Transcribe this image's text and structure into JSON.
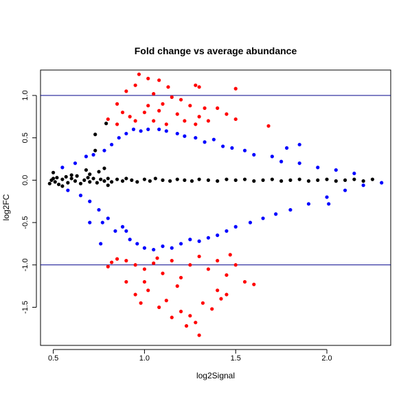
{
  "chart_data": {
    "type": "scatter",
    "title": "Fold change vs average abundance",
    "xlabel": "log2Signal",
    "ylabel": "log2FC",
    "xlim": [
      0.43,
      2.35
    ],
    "ylim": [
      -1.95,
      1.3
    ],
    "x_ticks": [
      0.5,
      1.0,
      1.5,
      2.0
    ],
    "x_tick_labels": [
      "0.5",
      "1.0",
      "1.5",
      "2.0"
    ],
    "y_ticks": [
      -1.5,
      -1.0,
      -0.5,
      0.0,
      0.5,
      1.0
    ],
    "y_tick_labels": [
      "-1.5",
      "-1.0",
      "-0.5",
      "0.0",
      "0.5",
      "1.0"
    ],
    "reference_lines": [
      1.0,
      -1.0
    ],
    "reference_line_color": "#00008B",
    "grid": false,
    "colors": {
      "black": "#000000",
      "blue": "#0000FF",
      "red": "#FF0000"
    },
    "series": [
      {
        "color": "black",
        "points": [
          [
            0.48,
            -0.04
          ],
          [
            0.49,
            0.0
          ],
          [
            0.5,
            0.02
          ],
          [
            0.51,
            -0.02
          ],
          [
            0.52,
            0.03
          ],
          [
            0.53,
            -0.05
          ],
          [
            0.55,
            0.01
          ],
          [
            0.57,
            0.04
          ],
          [
            0.58,
            -0.03
          ],
          [
            0.6,
            0.02
          ],
          [
            0.62,
            -0.01
          ],
          [
            0.63,
            0.05
          ],
          [
            0.65,
            -0.04
          ],
          [
            0.67,
            0.0
          ],
          [
            0.69,
            0.03
          ],
          [
            0.7,
            -0.02
          ],
          [
            0.72,
            0.02
          ],
          [
            0.74,
            -0.03
          ],
          [
            0.76,
            0.01
          ],
          [
            0.78,
            -0.01
          ],
          [
            0.8,
            0.02
          ],
          [
            0.82,
            -0.02
          ],
          [
            0.85,
            0.01
          ],
          [
            0.88,
            -0.01
          ],
          [
            0.9,
            0.02
          ],
          [
            0.93,
            0.0
          ],
          [
            0.96,
            -0.02
          ],
          [
            1.0,
            0.01
          ],
          [
            1.03,
            -0.01
          ],
          [
            1.06,
            0.02
          ],
          [
            1.1,
            0.0
          ],
          [
            1.14,
            -0.01
          ],
          [
            1.18,
            0.01
          ],
          [
            1.22,
            0.0
          ],
          [
            1.26,
            -0.01
          ],
          [
            1.3,
            0.01
          ],
          [
            1.35,
            0.0
          ],
          [
            1.4,
            -0.01
          ],
          [
            1.45,
            0.01
          ],
          [
            1.5,
            0.0
          ],
          [
            1.55,
            0.01
          ],
          [
            1.6,
            -0.01
          ],
          [
            1.65,
            0.0
          ],
          [
            1.7,
            0.01
          ],
          [
            1.75,
            -0.01
          ],
          [
            1.8,
            0.0
          ],
          [
            1.85,
            0.01
          ],
          [
            1.9,
            -0.01
          ],
          [
            1.95,
            0.0
          ],
          [
            2.0,
            0.01
          ],
          [
            2.05,
            -0.01
          ],
          [
            2.1,
            0.0
          ],
          [
            2.15,
            0.01
          ],
          [
            2.2,
            -0.01
          ],
          [
            2.25,
            0.01
          ],
          [
            0.75,
            0.1
          ],
          [
            0.7,
            0.07
          ],
          [
            0.6,
            0.06
          ],
          [
            0.55,
            -0.07
          ],
          [
            0.8,
            -0.06
          ],
          [
            0.68,
            0.12
          ],
          [
            0.78,
            0.14
          ],
          [
            0.73,
            0.35
          ],
          [
            0.73,
            0.54
          ],
          [
            0.79,
            0.67
          ],
          [
            0.5,
            0.09
          ]
        ]
      },
      {
        "color": "blue",
        "points": [
          [
            0.55,
            0.15
          ],
          [
            0.58,
            -0.12
          ],
          [
            0.62,
            0.2
          ],
          [
            0.65,
            -0.18
          ],
          [
            0.68,
            0.28
          ],
          [
            0.7,
            -0.25
          ],
          [
            0.72,
            0.3
          ],
          [
            0.75,
            -0.35
          ],
          [
            0.77,
            -0.5
          ],
          [
            0.78,
            0.35
          ],
          [
            0.8,
            -0.45
          ],
          [
            0.82,
            0.42
          ],
          [
            0.84,
            -0.6
          ],
          [
            0.86,
            0.5
          ],
          [
            0.88,
            -0.55
          ],
          [
            0.9,
            0.55
          ],
          [
            0.92,
            -0.7
          ],
          [
            0.94,
            0.6
          ],
          [
            0.96,
            -0.75
          ],
          [
            0.98,
            0.58
          ],
          [
            1.0,
            -0.8
          ],
          [
            1.02,
            0.6
          ],
          [
            1.05,
            -0.82
          ],
          [
            1.08,
            0.6
          ],
          [
            1.1,
            -0.78
          ],
          [
            1.12,
            0.58
          ],
          [
            1.15,
            -0.8
          ],
          [
            1.18,
            0.55
          ],
          [
            1.2,
            -0.75
          ],
          [
            1.22,
            0.52
          ],
          [
            1.25,
            -0.7
          ],
          [
            1.28,
            0.5
          ],
          [
            1.3,
            -0.72
          ],
          [
            1.33,
            0.45
          ],
          [
            1.35,
            -0.68
          ],
          [
            1.38,
            0.48
          ],
          [
            1.4,
            -0.65
          ],
          [
            1.43,
            0.4
          ],
          [
            1.45,
            -0.6
          ],
          [
            1.48,
            0.38
          ],
          [
            1.5,
            -0.55
          ],
          [
            1.55,
            0.35
          ],
          [
            1.58,
            -0.5
          ],
          [
            1.6,
            0.3
          ],
          [
            1.65,
            -0.45
          ],
          [
            1.7,
            0.28
          ],
          [
            1.72,
            -0.4
          ],
          [
            1.75,
            0.22
          ],
          [
            1.8,
            -0.35
          ],
          [
            1.85,
            0.2
          ],
          [
            1.9,
            -0.28
          ],
          [
            1.95,
            0.15
          ],
          [
            2.0,
            -0.2
          ],
          [
            2.05,
            0.12
          ],
          [
            2.1,
            -0.12
          ],
          [
            2.15,
            0.08
          ],
          [
            2.2,
            -0.06
          ],
          [
            2.3,
            -0.03
          ],
          [
            1.78,
            0.38
          ],
          [
            0.7,
            -0.5
          ],
          [
            0.76,
            -0.75
          ],
          [
            0.9,
            -0.6
          ],
          [
            1.85,
            0.42
          ],
          [
            2.01,
            -0.28
          ]
        ]
      },
      {
        "color": "red",
        "points": [
          [
            0.97,
            1.25
          ],
          [
            1.02,
            1.2
          ],
          [
            1.08,
            1.18
          ],
          [
            0.95,
            1.12
          ],
          [
            1.13,
            1.1
          ],
          [
            1.28,
            1.12
          ],
          [
            1.3,
            1.1
          ],
          [
            1.5,
            1.08
          ],
          [
            0.9,
            1.05
          ],
          [
            1.05,
            1.02
          ],
          [
            1.15,
            0.98
          ],
          [
            1.2,
            0.95
          ],
          [
            0.85,
            0.9
          ],
          [
            1.1,
            0.9
          ],
          [
            1.25,
            0.88
          ],
          [
            1.33,
            0.85
          ],
          [
            1.4,
            0.85
          ],
          [
            0.88,
            0.8
          ],
          [
            1.0,
            0.8
          ],
          [
            1.18,
            0.78
          ],
          [
            1.3,
            0.75
          ],
          [
            1.45,
            0.78
          ],
          [
            0.8,
            0.72
          ],
          [
            0.95,
            0.7
          ],
          [
            1.05,
            0.7
          ],
          [
            1.22,
            0.7
          ],
          [
            1.35,
            0.7
          ],
          [
            1.5,
            0.72
          ],
          [
            0.85,
            0.66
          ],
          [
            1.12,
            0.66
          ],
          [
            1.28,
            0.66
          ],
          [
            1.68,
            0.64
          ],
          [
            0.92,
            0.75
          ],
          [
            1.02,
            0.88
          ],
          [
            1.08,
            0.82
          ],
          [
            0.8,
            -1.02
          ],
          [
            0.85,
            -0.93
          ],
          [
            0.9,
            -0.95
          ],
          [
            0.95,
            -1.0
          ],
          [
            1.0,
            -1.05
          ],
          [
            1.05,
            -0.98
          ],
          [
            1.1,
            -1.1
          ],
          [
            1.15,
            -0.95
          ],
          [
            1.2,
            -1.15
          ],
          [
            1.25,
            -1.0
          ],
          [
            1.3,
            -0.9
          ],
          [
            1.35,
            -1.05
          ],
          [
            1.4,
            -0.95
          ],
          [
            1.45,
            -1.12
          ],
          [
            1.5,
            -1.0
          ],
          [
            1.55,
            -1.2
          ],
          [
            1.6,
            -1.23
          ],
          [
            0.9,
            -1.2
          ],
          [
            0.95,
            -1.35
          ],
          [
            0.98,
            -1.45
          ],
          [
            1.02,
            -1.3
          ],
          [
            1.08,
            -1.5
          ],
          [
            1.12,
            -1.42
          ],
          [
            1.15,
            -1.62
          ],
          [
            1.2,
            -1.55
          ],
          [
            1.23,
            -1.72
          ],
          [
            1.25,
            -1.6
          ],
          [
            1.28,
            -1.68
          ],
          [
            1.32,
            -1.45
          ],
          [
            1.37,
            -1.52
          ],
          [
            1.42,
            -1.4
          ],
          [
            1.45,
            -1.35
          ],
          [
            1.3,
            -1.83
          ],
          [
            1.18,
            -1.25
          ],
          [
            1.0,
            -1.2
          ],
          [
            1.07,
            -0.92
          ],
          [
            1.4,
            -1.3
          ],
          [
            1.47,
            -0.88
          ],
          [
            0.82,
            -0.97
          ]
        ]
      }
    ]
  }
}
